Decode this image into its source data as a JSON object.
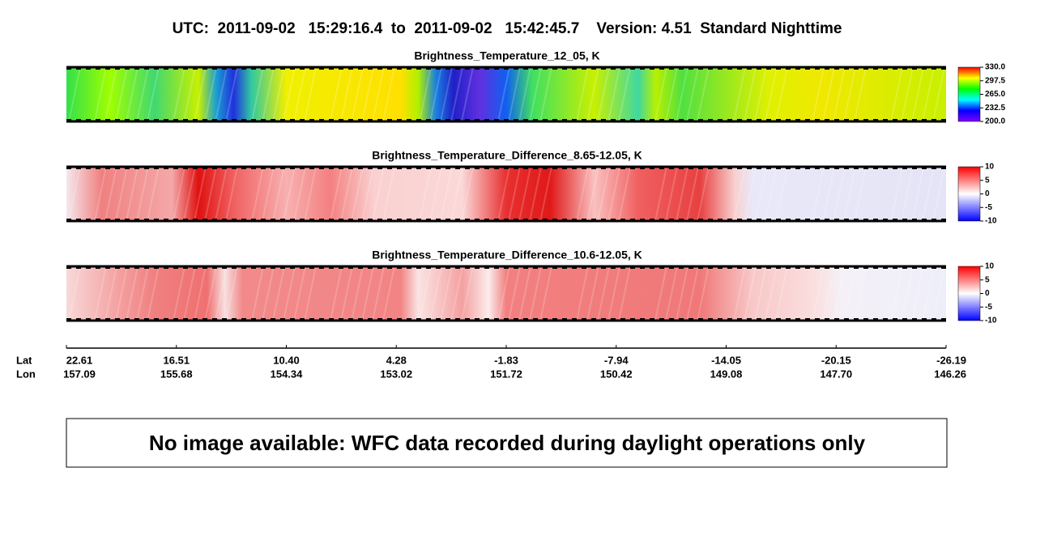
{
  "title": "UTC:  2011-09-02   15:29:16.4  to  2011-09-02   15:42:45.7    Version: 4.51  Standard Nighttime",
  "chart_data": [
    {
      "type": "heatmap",
      "title": "Brightness_Temperature_12_05, K",
      "clim": [
        200,
        330
      ],
      "cticks": [
        {
          "value": 330,
          "label": "330.0"
        },
        {
          "value": 297.5,
          "label": "297.5"
        },
        {
          "value": 265,
          "label": "265.0"
        },
        {
          "value": 232.5,
          "label": "232.5"
        },
        {
          "value": 200,
          "label": "200.0"
        }
      ],
      "colormap": [
        "#8000ff",
        "#0000ff",
        "#00ffff",
        "#00ff00",
        "#ffff00",
        "#ff0000"
      ]
    },
    {
      "type": "heatmap",
      "title": "Brightness_Temperature_Difference_8.65-12.05, K",
      "clim": [
        -10,
        10
      ],
      "cticks": [
        10,
        5,
        0,
        -5,
        -10
      ],
      "colormap": [
        "#0000ff",
        "#ffffff",
        "#ff0000"
      ]
    },
    {
      "type": "heatmap",
      "title": "Brightness_Temperature_Difference_10.6-12.05, K",
      "clim": [
        -10,
        10
      ],
      "cticks": [
        10,
        5,
        0,
        -5,
        -10
      ],
      "colormap": [
        "#0000ff",
        "#ffffff",
        "#ff0000"
      ]
    }
  ],
  "x_axis": {
    "lat_label": "Lat",
    "lon_label": "Lon",
    "lat_ticks": [
      22.61,
      16.51,
      {
        "value": 10.4,
        "label": "10.40"
      },
      4.28,
      -1.83,
      -7.94,
      -14.05,
      -20.15,
      -26.19
    ],
    "lon_ticks": [
      157.09,
      155.68,
      154.34,
      153.02,
      151.72,
      150.42,
      149.08,
      {
        "value": 147.7,
        "label": "147.70"
      },
      146.26
    ]
  },
  "notice": "No image available: WFC data recorded during daylight operations only"
}
